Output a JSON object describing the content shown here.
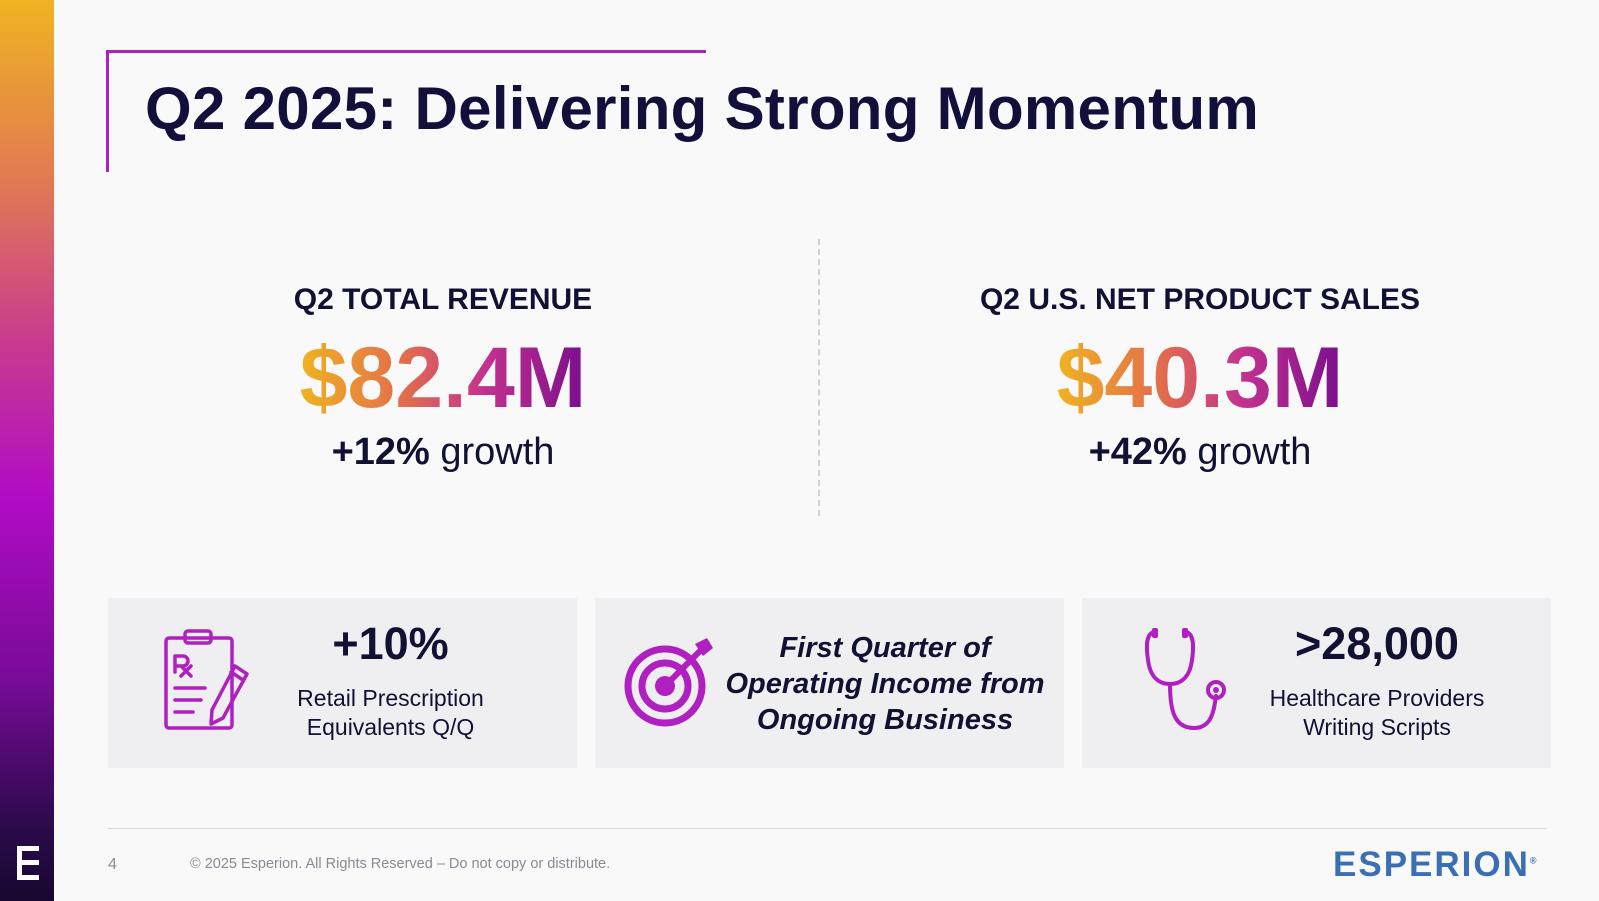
{
  "slide": {
    "title": "Q2 2025: Delivering Strong Momentum"
  },
  "kpis": [
    {
      "label": "Q2 TOTAL REVENUE",
      "value": "$82.4M",
      "growth_value": "+12%",
      "growth_word": "growth"
    },
    {
      "label": "Q2 U.S. NET PRODUCT SALES",
      "value": "$40.3M",
      "growth_value": "+42%",
      "growth_word": "growth"
    }
  ],
  "cards": [
    {
      "icon": "prescription-clipboard-icon",
      "stat": "+10%",
      "line1": "Retail Prescription",
      "line2": "Equivalents Q/Q"
    },
    {
      "icon": "target-icon",
      "line1": "First Quarter of",
      "line2": "Operating Income from",
      "line3": "Ongoing Business"
    },
    {
      "icon": "stethoscope-icon",
      "stat": ">28,000",
      "line1": "Healthcare Providers",
      "line2": "Writing Scripts"
    }
  ],
  "footer": {
    "page_number": "4",
    "copyright": "© 2025 Esperion. All Rights Reserved – Do not copy or distribute.",
    "brand": "ESPERION",
    "brand_mark": "®"
  },
  "colors": {
    "accent": "#b01fc0",
    "navy": "#120f3a",
    "brand_blue": "#3a6fb6",
    "gradient": [
      "#f0b321",
      "#e3704a",
      "#c3318f",
      "#7a0e8e"
    ]
  }
}
